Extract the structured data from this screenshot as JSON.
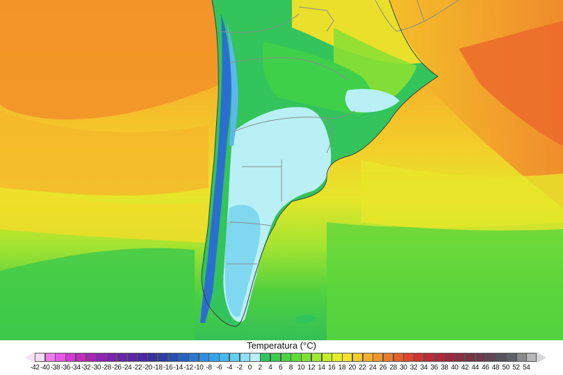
{
  "legend": {
    "title": "Temperatura (°C)",
    "ticks": [
      "-42",
      "-40",
      "-38",
      "-36",
      "-34",
      "-32",
      "-30",
      "-28",
      "-26",
      "-24",
      "-22",
      "-20",
      "-18",
      "-16",
      "-14",
      "-12",
      "-10",
      "-8",
      "-6",
      "-4",
      "-2",
      "0",
      "2",
      "4",
      "6",
      "8",
      "10",
      "12",
      "14",
      "16",
      "18",
      "20",
      "22",
      "24",
      "26",
      "28",
      "30",
      "32",
      "34",
      "36",
      "38",
      "40",
      "42",
      "44",
      "46",
      "48",
      "50",
      "52",
      "54"
    ],
    "colors": [
      "#f7dcf7",
      "#ef7cef",
      "#e659e6",
      "#d43ad4",
      "#c02cc0",
      "#a826b8",
      "#9024b4",
      "#7d23b0",
      "#6a24ac",
      "#5a26a8",
      "#4a2ba4",
      "#3a32a0",
      "#2b3da4",
      "#2450b0",
      "#2563c0",
      "#2a78d0",
      "#2e8de0",
      "#36a3e8",
      "#46b8ef",
      "#62cdf3",
      "#8de0f6",
      "#b8f0f8",
      "#2fc45c",
      "#3ccc4e",
      "#4ad443",
      "#5ddc3a",
      "#7ee234",
      "#a2e830",
      "#c4ec2c",
      "#e2ee2a",
      "#f4e22a",
      "#f7c92b",
      "#f5b02c",
      "#f1962c",
      "#ec7c2c",
      "#e5602c",
      "#dc472e",
      "#cf3531",
      "#c02a34",
      "#ae2838",
      "#9b2a3c",
      "#8a2e40",
      "#7a3444",
      "#6c3c4a",
      "#604652",
      "#58525c",
      "#5e6268",
      "#8a8a8e",
      "#b6b6b8"
    ]
  },
  "map": {
    "region": "South America (Southern Cone)",
    "variable": "Temperatura",
    "units": "°C"
  }
}
